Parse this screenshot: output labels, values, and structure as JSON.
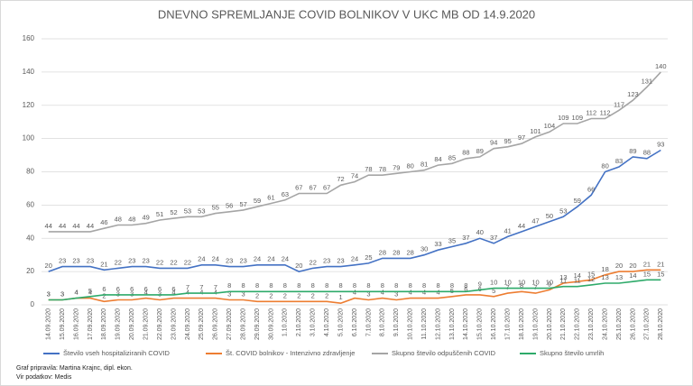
{
  "chart_data": {
    "type": "line",
    "title": "DNEVNO SPREMLJANJE COVID BOLNIKOV V UKC MB OD 14.9.2020",
    "categories": [
      "14.09.2020",
      "15.09.2020",
      "16.09.2020",
      "17.09.2020",
      "18.09.2020",
      "19.09.2020",
      "20.09.2020",
      "21.09.2020",
      "22.09.2020",
      "23.09.2020",
      "24.09.2020",
      "25.09.2020",
      "26.09.2020",
      "27.09.2020",
      "28.09.2020",
      "29.09.2020",
      "30.09.2020",
      "1.10.2020",
      "2.10.2020",
      "3.10.2020",
      "4.10.2020",
      "5.10.2020",
      "6.10.2020",
      "7.10.2020",
      "8.10.2020",
      "9.10.2020",
      "10.10.2020",
      "11.10.2020",
      "12.10.2020",
      "13.10.2020",
      "14.10.2020",
      "15.10.2020",
      "16.10.2020",
      "17.10.2020",
      "18.10.2020",
      "19.10.2020",
      "20.10.2020",
      "21.10.2020",
      "22.10.2020",
      "23.10.2020",
      "24.10.2020",
      "25.10.2020",
      "26.10.2020",
      "27.10.2020",
      "28.10.2020"
    ],
    "series": [
      {
        "name": "Število vseh hospitaliziranih COVID",
        "color": "#4472c4",
        "values": [
          20,
          23,
          23,
          23,
          21,
          22,
          23,
          23,
          22,
          22,
          22,
          24,
          24,
          23,
          23,
          24,
          24,
          24,
          20,
          22,
          23,
          23,
          24,
          25,
          28,
          28,
          28,
          30,
          33,
          35,
          37,
          40,
          37,
          41,
          44,
          47,
          50,
          53,
          59,
          66,
          80,
          83,
          89,
          88,
          93
        ]
      },
      {
        "name": "Št. COVID bolnikov - Intenzivno zdravljenje",
        "color": "#ed7d31",
        "values": [
          3,
          3,
          4,
          4,
          2,
          3,
          3,
          4,
          3,
          4,
          4,
          4,
          4,
          3,
          3,
          2,
          2,
          2,
          2,
          2,
          2,
          1,
          4,
          3,
          4,
          3,
          4,
          4,
          4,
          5,
          6,
          6,
          5,
          7,
          8,
          7,
          9,
          13,
          14,
          15,
          18,
          20,
          20,
          21,
          21
        ]
      },
      {
        "name": "Skupno število odpuščenih COVID",
        "color": "#a5a5a5",
        "values": [
          44,
          44,
          44,
          44,
          46,
          48,
          48,
          49,
          51,
          52,
          53,
          53,
          55,
          56,
          57,
          59,
          61,
          63,
          67,
          67,
          67,
          72,
          74,
          78,
          78,
          79,
          80,
          81,
          84,
          85,
          88,
          89,
          94,
          95,
          97,
          101,
          104,
          109,
          109,
          112,
          112,
          117,
          123,
          131,
          140
        ]
      },
      {
        "name": "Skupno število umrlih",
        "color": "#2eaa6a",
        "values": [
          3,
          3,
          4,
          5,
          6,
          6,
          6,
          6,
          6,
          6,
          7,
          7,
          7,
          8,
          8,
          8,
          8,
          8,
          8,
          8,
          8,
          8,
          8,
          8,
          8,
          8,
          8,
          8,
          8,
          8,
          8,
          9,
          10,
          10,
          10,
          10,
          10,
          11,
          11,
          12,
          13,
          13,
          14,
          15,
          15
        ]
      }
    ],
    "ylim": [
      0,
      160
    ],
    "yticks": [
      0,
      20,
      40,
      60,
      80,
      100,
      120,
      140,
      160
    ],
    "grid": true,
    "legend": "bottom",
    "footer": [
      "Graf pripravila: Martina Krajnc, dipl. ekon.",
      "Vir podatkov: Medis"
    ]
  }
}
